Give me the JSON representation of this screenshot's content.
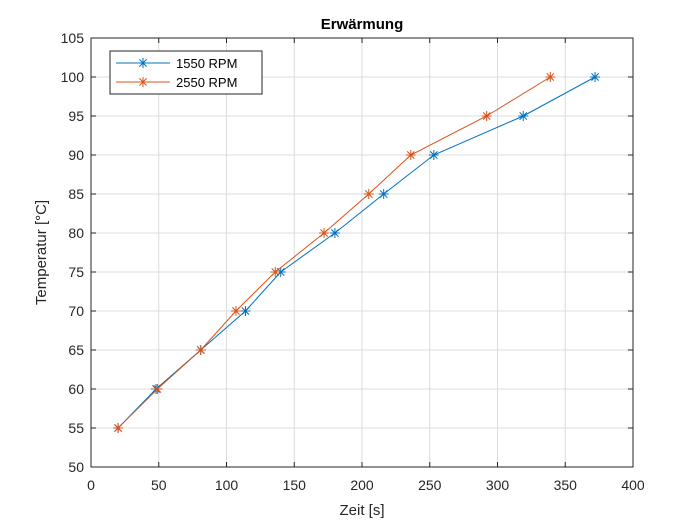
{
  "chart_data": {
    "type": "line",
    "title": "Erwärmung",
    "xlabel": "Zeit [s]",
    "ylabel": "Temperatur [°C]",
    "xlim": [
      0,
      400
    ],
    "ylim": [
      50,
      105
    ],
    "xticks": [
      0,
      50,
      100,
      150,
      200,
      250,
      300,
      350,
      400
    ],
    "yticks": [
      50,
      55,
      60,
      65,
      70,
      75,
      80,
      85,
      90,
      95,
      100,
      105
    ],
    "grid": true,
    "legend_position": "top-left",
    "marker": "asterisk",
    "series": [
      {
        "name": "1550 RPM",
        "color": "#0072BD",
        "x": [
          20,
          48,
          81,
          114,
          140,
          180,
          216,
          253,
          319,
          372
        ],
        "y": [
          55,
          60,
          65,
          70,
          75,
          80,
          85,
          90,
          95,
          100
        ]
      },
      {
        "name": "2550 RPM",
        "color": "#D95319",
        "x": [
          20,
          49,
          81,
          107,
          136,
          172,
          205,
          236,
          292,
          339
        ],
        "y": [
          55,
          60,
          65,
          70,
          75,
          80,
          85,
          90,
          95,
          100
        ]
      }
    ]
  }
}
